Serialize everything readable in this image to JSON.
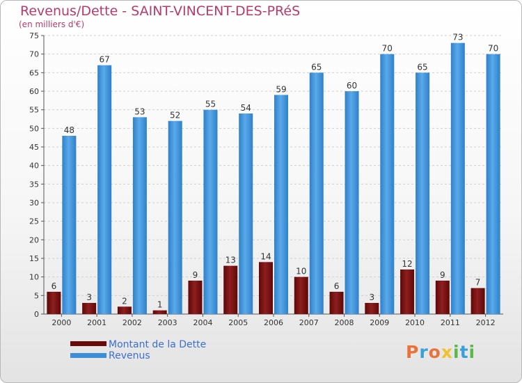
{
  "chart_data": {
    "type": "bar",
    "title": "Revenus/Dette - SAINT-VINCENT-DES-PRéS",
    "subtitle": "(en milliers d'€)",
    "xlabel": "",
    "ylabel": "",
    "ylim": [
      0,
      75
    ],
    "yticks": [
      0,
      5,
      10,
      15,
      20,
      25,
      30,
      35,
      40,
      45,
      50,
      55,
      60,
      65,
      70,
      75
    ],
    "grid": true,
    "categories": [
      "2000",
      "2001",
      "2002",
      "2003",
      "2004",
      "2005",
      "2006",
      "2007",
      "2008",
      "2009",
      "2010",
      "2011",
      "2012"
    ],
    "series": [
      {
        "name": "Montant de la Dette",
        "color": "#7a1515",
        "values": [
          6,
          3,
          2,
          1,
          9,
          13,
          14,
          10,
          6,
          3,
          12,
          9,
          7
        ]
      },
      {
        "name": "Revenus",
        "color": "#3a8fd8",
        "values": [
          48,
          67,
          53,
          52,
          55,
          54,
          59,
          65,
          60,
          70,
          65,
          73,
          70
        ]
      }
    ],
    "legend_position": "bottom-left"
  },
  "logo": {
    "letters": [
      {
        "char": "P",
        "color": "#e8733a"
      },
      {
        "char": "r",
        "color": "#3aa0d8"
      },
      {
        "char": "o",
        "color": "#e8733a"
      },
      {
        "char": "x",
        "color": "#f2c12e"
      },
      {
        "char": "i",
        "color": "#5ab84a"
      },
      {
        "char": "t",
        "color": "#3aa0d8"
      },
      {
        "char": "i",
        "color": "#5ab84a"
      }
    ]
  }
}
